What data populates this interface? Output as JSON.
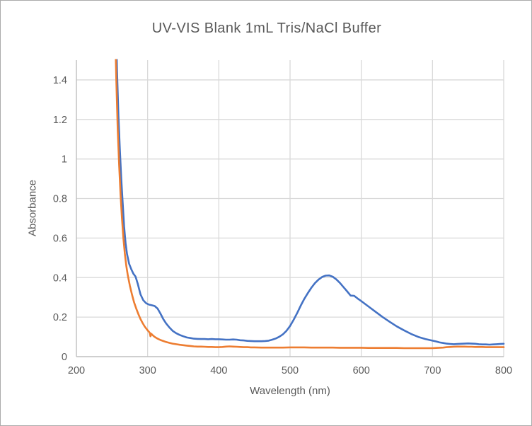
{
  "title": "UV-VIS Blank 1mL Tris/NaCl Buffer",
  "colors": {
    "title_text": "#595959",
    "axis_text": "#595959",
    "gridline": "#d9d9d9",
    "axis_line": "#bfbfbf",
    "background": "#ffffff",
    "border": "#ababab",
    "series_blue": "#4472c4",
    "series_orange": "#ed7d31"
  },
  "chart_data": {
    "type": "line",
    "title": "UV-VIS Blank 1mL Tris/NaCl Buffer",
    "xlabel": "Wavelength (nm)",
    "ylabel": "Absorbance",
    "xlim": [
      200,
      800
    ],
    "ylim": [
      0,
      1.5
    ],
    "grid": true,
    "legend": "none",
    "x_ticks": [
      {
        "v": 200,
        "label": "200"
      },
      {
        "v": 300,
        "label": "300"
      },
      {
        "v": 400,
        "label": "400"
      },
      {
        "v": 500,
        "label": "500"
      },
      {
        "v": 600,
        "label": "600"
      },
      {
        "v": 700,
        "label": "700"
      },
      {
        "v": 800,
        "label": "800"
      }
    ],
    "y_ticks": [
      {
        "v": 0,
        "label": "0"
      },
      {
        "v": 0.2,
        "label": "0.2"
      },
      {
        "v": 0.4,
        "label": "0.4"
      },
      {
        "v": 0.6,
        "label": "0.6"
      },
      {
        "v": 0.8,
        "label": "0.8"
      },
      {
        "v": 1,
        "label": "1"
      },
      {
        "v": 1.2,
        "label": "1.2"
      },
      {
        "v": 1.4,
        "label": "1.4"
      }
    ],
    "series": [
      {
        "name": "blue",
        "color": "#4472c4",
        "points": [
          [
            250,
            3.0
          ],
          [
            253,
            2.2
          ],
          [
            255,
            1.75
          ],
          [
            257,
            1.45
          ],
          [
            259,
            1.22
          ],
          [
            261,
            1.05
          ],
          [
            263,
            0.9
          ],
          [
            265,
            0.78
          ],
          [
            267,
            0.66
          ],
          [
            269,
            0.575
          ],
          [
            271,
            0.52
          ],
          [
            274,
            0.47
          ],
          [
            277,
            0.443
          ],
          [
            280,
            0.42
          ],
          [
            283,
            0.405
          ],
          [
            286,
            0.37
          ],
          [
            290,
            0.315
          ],
          [
            294,
            0.285
          ],
          [
            298,
            0.27
          ],
          [
            302,
            0.263
          ],
          [
            306,
            0.26
          ],
          [
            310,
            0.256
          ],
          [
            314,
            0.243
          ],
          [
            318,
            0.218
          ],
          [
            322,
            0.19
          ],
          [
            326,
            0.168
          ],
          [
            330,
            0.15
          ],
          [
            335,
            0.131
          ],
          [
            340,
            0.119
          ],
          [
            345,
            0.11
          ],
          [
            350,
            0.103
          ],
          [
            355,
            0.097
          ],
          [
            360,
            0.094
          ],
          [
            365,
            0.091
          ],
          [
            370,
            0.09
          ],
          [
            375,
            0.089
          ],
          [
            380,
            0.089
          ],
          [
            385,
            0.088
          ],
          [
            390,
            0.089
          ],
          [
            395,
            0.088
          ],
          [
            400,
            0.088
          ],
          [
            405,
            0.087
          ],
          [
            410,
            0.086
          ],
          [
            415,
            0.086
          ],
          [
            420,
            0.087
          ],
          [
            425,
            0.086
          ],
          [
            430,
            0.083
          ],
          [
            435,
            0.082
          ],
          [
            440,
            0.08
          ],
          [
            445,
            0.079
          ],
          [
            450,
            0.078
          ],
          [
            455,
            0.078
          ],
          [
            460,
            0.078
          ],
          [
            465,
            0.079
          ],
          [
            470,
            0.081
          ],
          [
            475,
            0.086
          ],
          [
            480,
            0.092
          ],
          [
            485,
            0.101
          ],
          [
            490,
            0.113
          ],
          [
            495,
            0.131
          ],
          [
            500,
            0.155
          ],
          [
            505,
            0.186
          ],
          [
            510,
            0.221
          ],
          [
            515,
            0.258
          ],
          [
            520,
            0.292
          ],
          [
            525,
            0.322
          ],
          [
            530,
            0.349
          ],
          [
            535,
            0.372
          ],
          [
            540,
            0.39
          ],
          [
            545,
            0.403
          ],
          [
            550,
            0.41
          ],
          [
            555,
            0.411
          ],
          [
            560,
            0.404
          ],
          [
            565,
            0.391
          ],
          [
            570,
            0.373
          ],
          [
            575,
            0.352
          ],
          [
            580,
            0.331
          ],
          [
            585,
            0.309
          ],
          [
            590,
            0.308
          ],
          [
            595,
            0.294
          ],
          [
            600,
            0.281
          ],
          [
            610,
            0.254
          ],
          [
            620,
            0.227
          ],
          [
            630,
            0.2
          ],
          [
            640,
            0.176
          ],
          [
            650,
            0.153
          ],
          [
            660,
            0.133
          ],
          [
            670,
            0.115
          ],
          [
            680,
            0.1
          ],
          [
            690,
            0.089
          ],
          [
            700,
            0.081
          ],
          [
            705,
            0.077
          ],
          [
            710,
            0.072
          ],
          [
            715,
            0.069
          ],
          [
            720,
            0.066
          ],
          [
            725,
            0.064
          ],
          [
            730,
            0.063
          ],
          [
            735,
            0.064
          ],
          [
            740,
            0.065
          ],
          [
            745,
            0.066
          ],
          [
            750,
            0.067
          ],
          [
            755,
            0.066
          ],
          [
            760,
            0.065
          ],
          [
            765,
            0.063
          ],
          [
            770,
            0.062
          ],
          [
            775,
            0.062
          ],
          [
            780,
            0.061
          ],
          [
            785,
            0.062
          ],
          [
            790,
            0.063
          ],
          [
            795,
            0.064
          ],
          [
            800,
            0.065
          ]
        ]
      },
      {
        "name": "orange",
        "color": "#ed7d31",
        "points": [
          [
            250,
            3.0
          ],
          [
            252,
            2.1
          ],
          [
            254,
            1.7
          ],
          [
            256,
            1.4
          ],
          [
            258,
            1.15
          ],
          [
            260,
            0.97
          ],
          [
            262,
            0.82
          ],
          [
            264,
            0.7
          ],
          [
            266,
            0.6
          ],
          [
            268,
            0.52
          ],
          [
            270,
            0.46
          ],
          [
            272,
            0.415
          ],
          [
            275,
            0.36
          ],
          [
            278,
            0.315
          ],
          [
            281,
            0.275
          ],
          [
            284,
            0.243
          ],
          [
            287,
            0.215
          ],
          [
            290,
            0.19
          ],
          [
            293,
            0.17
          ],
          [
            296,
            0.152
          ],
          [
            300,
            0.133
          ],
          [
            303,
            0.121
          ],
          [
            304,
            0.103
          ],
          [
            305,
            0.116
          ],
          [
            307,
            0.109
          ],
          [
            310,
            0.1
          ],
          [
            314,
            0.091
          ],
          [
            318,
            0.084
          ],
          [
            322,
            0.079
          ],
          [
            326,
            0.074
          ],
          [
            330,
            0.07
          ],
          [
            335,
            0.066
          ],
          [
            340,
            0.063
          ],
          [
            345,
            0.06
          ],
          [
            350,
            0.058
          ],
          [
            355,
            0.056
          ],
          [
            360,
            0.054
          ],
          [
            365,
            0.052
          ],
          [
            370,
            0.051
          ],
          [
            375,
            0.051
          ],
          [
            380,
            0.05
          ],
          [
            385,
            0.049
          ],
          [
            390,
            0.049
          ],
          [
            395,
            0.048
          ],
          [
            400,
            0.048
          ],
          [
            405,
            0.049
          ],
          [
            410,
            0.051
          ],
          [
            415,
            0.052
          ],
          [
            420,
            0.051
          ],
          [
            425,
            0.05
          ],
          [
            430,
            0.049
          ],
          [
            435,
            0.048
          ],
          [
            440,
            0.048
          ],
          [
            445,
            0.047
          ],
          [
            450,
            0.047
          ],
          [
            460,
            0.046
          ],
          [
            470,
            0.046
          ],
          [
            480,
            0.046
          ],
          [
            490,
            0.046
          ],
          [
            500,
            0.047
          ],
          [
            510,
            0.047
          ],
          [
            520,
            0.047
          ],
          [
            530,
            0.046
          ],
          [
            540,
            0.046
          ],
          [
            550,
            0.046
          ],
          [
            560,
            0.046
          ],
          [
            570,
            0.045
          ],
          [
            580,
            0.045
          ],
          [
            590,
            0.045
          ],
          [
            600,
            0.045
          ],
          [
            610,
            0.044
          ],
          [
            620,
            0.044
          ],
          [
            630,
            0.044
          ],
          [
            640,
            0.044
          ],
          [
            650,
            0.044
          ],
          [
            660,
            0.043
          ],
          [
            670,
            0.043
          ],
          [
            680,
            0.043
          ],
          [
            690,
            0.043
          ],
          [
            700,
            0.043
          ],
          [
            705,
            0.044
          ],
          [
            710,
            0.045
          ],
          [
            715,
            0.046
          ],
          [
            720,
            0.048
          ],
          [
            725,
            0.049
          ],
          [
            730,
            0.05
          ],
          [
            735,
            0.051
          ],
          [
            740,
            0.051
          ],
          [
            745,
            0.051
          ],
          [
            750,
            0.05
          ],
          [
            755,
            0.05
          ],
          [
            760,
            0.049
          ],
          [
            765,
            0.049
          ],
          [
            770,
            0.049
          ],
          [
            775,
            0.048
          ],
          [
            780,
            0.048
          ],
          [
            785,
            0.048
          ],
          [
            790,
            0.048
          ],
          [
            795,
            0.048
          ],
          [
            800,
            0.048
          ]
        ]
      }
    ]
  }
}
